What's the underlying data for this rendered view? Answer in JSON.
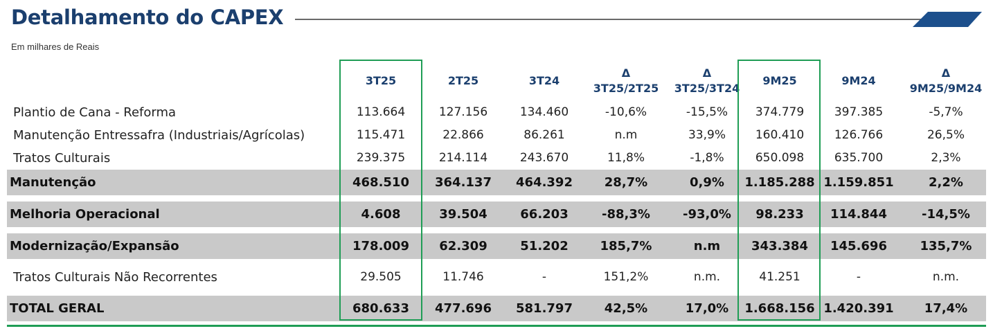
{
  "title": "Detalhamento do CAPEX",
  "subtitle": "Em milhares de Reais",
  "columns": [
    {
      "line1": "",
      "line2": "3T25"
    },
    {
      "line1": "",
      "line2": "2T25"
    },
    {
      "line1": "",
      "line2": "3T24"
    },
    {
      "line1": "Δ",
      "line2": "3T25/2T25"
    },
    {
      "line1": "Δ",
      "line2": "3T25/3T24"
    },
    {
      "line1": "",
      "line2": "9M25"
    },
    {
      "line1": "",
      "line2": "9M24"
    },
    {
      "line1": "Δ",
      "line2": "9M25/9M24"
    }
  ],
  "rows": [
    {
      "label": "Plantio de Cana - Reforma",
      "values": [
        "113.664",
        "127.156",
        "134.460",
        "-10,6%",
        "-15,5%",
        "374.779",
        "397.385",
        "-5,7%"
      ]
    },
    {
      "label": "Manutenção Entressafra (Industriais/Agrícolas)",
      "values": [
        "115.471",
        "22.866",
        "86.261",
        "n.m",
        "33,9%",
        "160.410",
        "126.766",
        "26,5%"
      ]
    },
    {
      "label": "Tratos Culturais",
      "values": [
        "239.375",
        "214.114",
        "243.670",
        "11,8%",
        "-1,8%",
        "650.098",
        "635.700",
        "2,3%"
      ]
    },
    {
      "label": "Manutenção",
      "values": [
        "468.510",
        "364.137",
        "464.392",
        "28,7%",
        "0,9%",
        "1.185.288",
        "1.159.851",
        "2,2%"
      ]
    },
    {
      "label": "Melhoria Operacional",
      "values": [
        "4.608",
        "39.504",
        "66.203",
        "-88,3%",
        "-93,0%",
        "98.233",
        "114.844",
        "-14,5%"
      ]
    },
    {
      "label": "Modernização/Expansão",
      "values": [
        "178.009",
        "62.309",
        "51.202",
        "185,7%",
        "n.m",
        "343.384",
        "145.696",
        "135,7%"
      ]
    },
    {
      "label": "Tratos Culturais Não Recorrentes",
      "values": [
        "29.505",
        "11.746",
        "-",
        "151,2%",
        "n.m.",
        "41.251",
        "-",
        "n.m."
      ]
    },
    {
      "label": "TOTAL GERAL",
      "values": [
        "680.633",
        "477.696",
        "581.797",
        "42,5%",
        "17,0%",
        "1.668.156",
        "1.420.391",
        "17,4%"
      ]
    }
  ],
  "colors": {
    "title": "#1b3f6e",
    "accent_tab": "#1c4f8c",
    "highlight": "#1f9d55",
    "band": "#c9c9c9"
  }
}
